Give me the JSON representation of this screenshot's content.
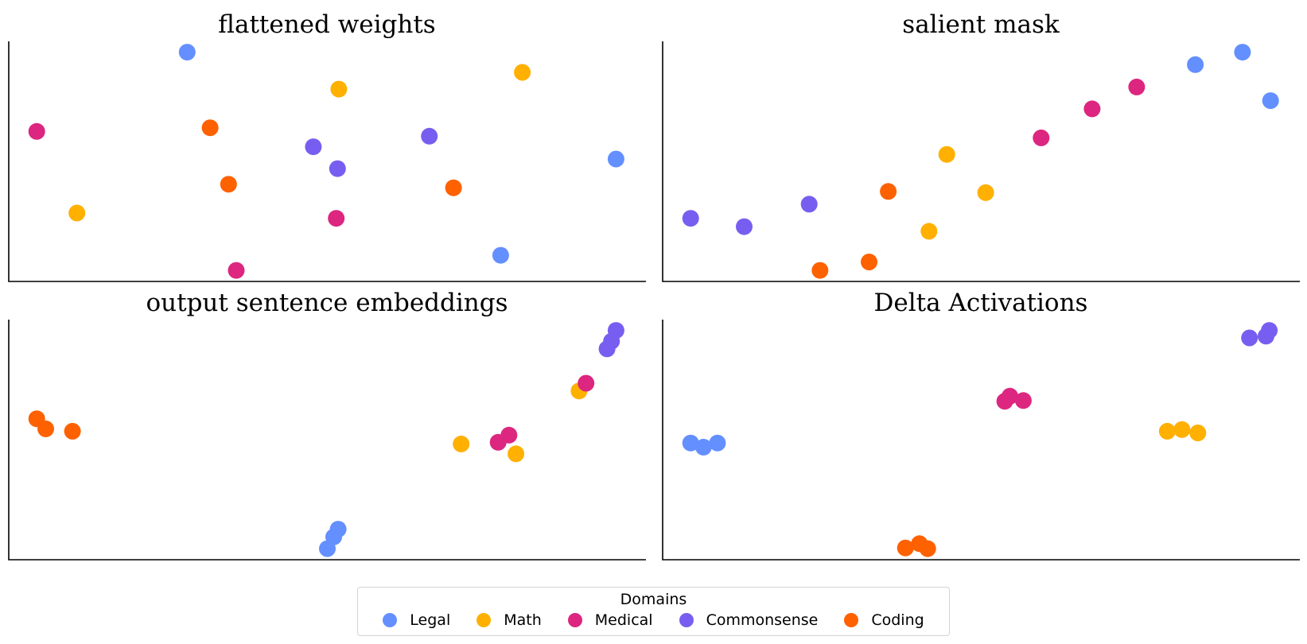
{
  "chart_data": {
    "type": "scatter",
    "grid": false,
    "legend": {
      "title": "Domains",
      "placement": "bottom-center",
      "entries": [
        {
          "name": "Legal",
          "color": "#648FFF"
        },
        {
          "name": "Math",
          "color": "#FFB000"
        },
        {
          "name": "Medical",
          "color": "#DC267F"
        },
        {
          "name": "Commonsense",
          "color": "#785EF0"
        },
        {
          "name": "Coding",
          "color": "#FE6100"
        }
      ]
    },
    "panels": [
      {
        "title": "flattened weights",
        "xlim": [
          0,
          100
        ],
        "ylim": [
          0,
          100
        ],
        "points": [
          {
            "domain": "Legal",
            "x": 28.0,
            "y": 95.5
          },
          {
            "domain": "Legal",
            "x": 95.3,
            "y": 51.0
          },
          {
            "domain": "Legal",
            "x": 77.2,
            "y": 10.9
          },
          {
            "domain": "Math",
            "x": 51.8,
            "y": 80.1
          },
          {
            "domain": "Math",
            "x": 80.6,
            "y": 87.1
          },
          {
            "domain": "Math",
            "x": 10.7,
            "y": 28.5
          },
          {
            "domain": "Medical",
            "x": 4.4,
            "y": 62.5
          },
          {
            "domain": "Medical",
            "x": 51.4,
            "y": 26.3
          },
          {
            "domain": "Medical",
            "x": 35.7,
            "y": 4.6
          },
          {
            "domain": "Commonsense",
            "x": 47.8,
            "y": 56.1
          },
          {
            "domain": "Commonsense",
            "x": 66.0,
            "y": 60.5
          },
          {
            "domain": "Commonsense",
            "x": 51.6,
            "y": 47.0
          },
          {
            "domain": "Coding",
            "x": 31.6,
            "y": 64.0
          },
          {
            "domain": "Coding",
            "x": 34.5,
            "y": 40.5
          },
          {
            "domain": "Coding",
            "x": 69.8,
            "y": 39.0
          }
        ]
      },
      {
        "title": "salient mask",
        "xlim": [
          0,
          100
        ],
        "ylim": [
          0,
          100
        ],
        "points": [
          {
            "domain": "Legal",
            "x": 83.6,
            "y": 90.3
          },
          {
            "domain": "Legal",
            "x": 91.0,
            "y": 95.5
          },
          {
            "domain": "Legal",
            "x": 95.4,
            "y": 75.3
          },
          {
            "domain": "Math",
            "x": 44.6,
            "y": 52.9
          },
          {
            "domain": "Math",
            "x": 50.7,
            "y": 37.0
          },
          {
            "domain": "Math",
            "x": 41.8,
            "y": 20.9
          },
          {
            "domain": "Medical",
            "x": 59.4,
            "y": 59.8
          },
          {
            "domain": "Medical",
            "x": 67.4,
            "y": 71.9
          },
          {
            "domain": "Medical",
            "x": 74.4,
            "y": 81.0
          },
          {
            "domain": "Commonsense",
            "x": 4.4,
            "y": 26.3
          },
          {
            "domain": "Commonsense",
            "x": 12.8,
            "y": 22.8
          },
          {
            "domain": "Commonsense",
            "x": 23.0,
            "y": 32.2
          },
          {
            "domain": "Coding",
            "x": 35.4,
            "y": 37.5
          },
          {
            "domain": "Coding",
            "x": 32.4,
            "y": 8.1
          },
          {
            "domain": "Coding",
            "x": 24.7,
            "y": 4.6
          }
        ]
      },
      {
        "title": "output sentence embeddings",
        "xlim": [
          0,
          100
        ],
        "ylim": [
          0,
          100
        ],
        "points": [
          {
            "domain": "Legal",
            "x": 51.7,
            "y": 12.7
          },
          {
            "domain": "Legal",
            "x": 51.0,
            "y": 9.5
          },
          {
            "domain": "Legal",
            "x": 50.0,
            "y": 4.6
          },
          {
            "domain": "Math",
            "x": 71.0,
            "y": 48.2
          },
          {
            "domain": "Math",
            "x": 79.6,
            "y": 44.1
          },
          {
            "domain": "Math",
            "x": 89.5,
            "y": 70.3
          },
          {
            "domain": "Medical",
            "x": 76.8,
            "y": 48.9
          },
          {
            "domain": "Medical",
            "x": 78.5,
            "y": 51.9
          },
          {
            "domain": "Medical",
            "x": 90.6,
            "y": 73.5
          },
          {
            "domain": "Commonsense",
            "x": 95.3,
            "y": 95.5
          },
          {
            "domain": "Commonsense",
            "x": 94.6,
            "y": 91.0
          },
          {
            "domain": "Commonsense",
            "x": 93.9,
            "y": 87.8
          },
          {
            "domain": "Coding",
            "x": 4.4,
            "y": 58.7
          },
          {
            "domain": "Coding",
            "x": 5.8,
            "y": 54.5
          },
          {
            "domain": "Coding",
            "x": 10.0,
            "y": 53.5
          }
        ]
      },
      {
        "title": "Delta Activations",
        "xlim": [
          0,
          100
        ],
        "ylim": [
          0,
          100
        ],
        "points": [
          {
            "domain": "Legal",
            "x": 4.4,
            "y": 48.6
          },
          {
            "domain": "Legal",
            "x": 6.4,
            "y": 46.9
          },
          {
            "domain": "Legal",
            "x": 8.6,
            "y": 48.6
          },
          {
            "domain": "Math",
            "x": 79.2,
            "y": 53.5
          },
          {
            "domain": "Math",
            "x": 81.5,
            "y": 54.2
          },
          {
            "domain": "Math",
            "x": 84.0,
            "y": 52.8
          },
          {
            "domain": "Medical",
            "x": 53.7,
            "y": 66.0
          },
          {
            "domain": "Medical",
            "x": 54.5,
            "y": 68.1
          },
          {
            "domain": "Medical",
            "x": 56.6,
            "y": 66.3
          },
          {
            "domain": "Commonsense",
            "x": 92.1,
            "y": 92.4
          },
          {
            "domain": "Commonsense",
            "x": 94.7,
            "y": 93.1
          },
          {
            "domain": "Commonsense",
            "x": 95.2,
            "y": 95.5
          },
          {
            "domain": "Coding",
            "x": 38.1,
            "y": 4.9
          },
          {
            "domain": "Coding",
            "x": 40.3,
            "y": 6.7
          },
          {
            "domain": "Coding",
            "x": 41.6,
            "y": 4.6
          }
        ]
      }
    ]
  }
}
